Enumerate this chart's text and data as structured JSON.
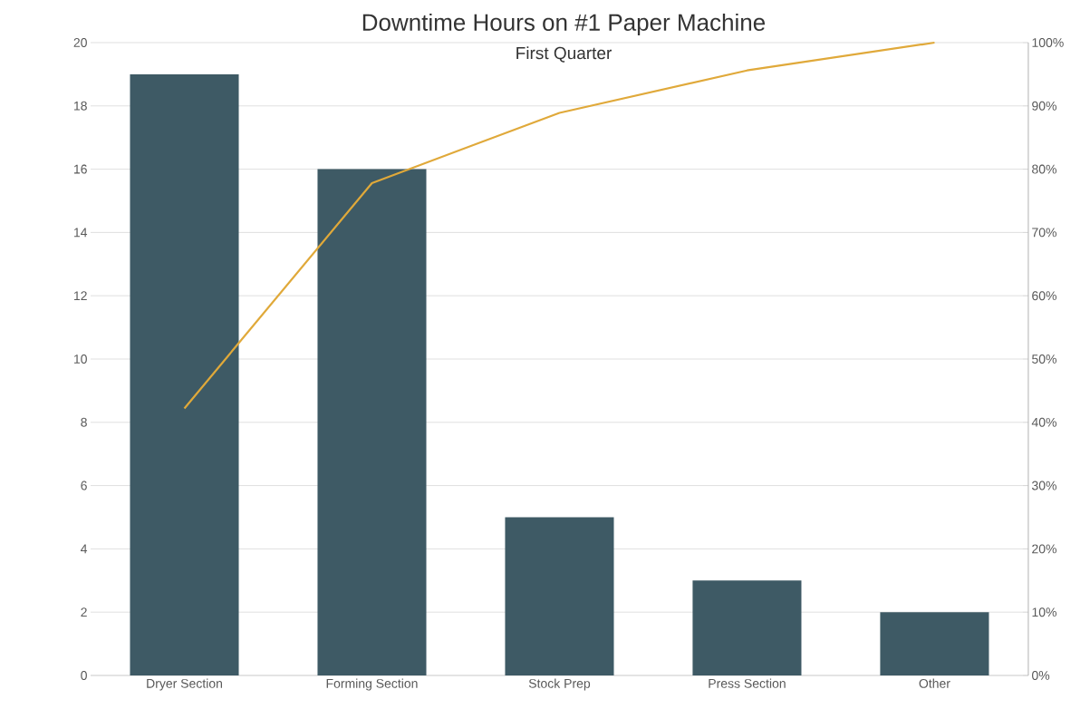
{
  "chart_data": {
    "type": "bar",
    "title": "Downtime Hours on #1 Paper Machine",
    "subtitle": "First Quarter",
    "categories": [
      "Dryer Section",
      "Forming Section",
      "Stock Prep",
      "Press Section",
      "Other"
    ],
    "series": [
      {
        "color": "#3e5a65",
        "values": [
          19,
          16,
          5,
          3,
          2
        ]
      },
      {
        "type": "line",
        "axis": "y2",
        "color": "#e0a93a",
        "marker": "none",
        "values": [
          42.2,
          77.8,
          88.9,
          95.6,
          100
        ]
      }
    ],
    "ylim": [
      0,
      20
    ],
    "yticks": [
      0,
      2,
      4,
      6,
      8,
      10,
      12,
      14,
      16,
      18,
      20
    ],
    "y2lim": [
      0,
      100
    ],
    "y2ticks": [
      {
        "value": 0,
        "label": "0%"
      },
      {
        "value": 10,
        "label": "10%"
      },
      {
        "value": 20,
        "label": "20%"
      },
      {
        "value": 30,
        "label": "30%"
      },
      {
        "value": 40,
        "label": "40%"
      },
      {
        "value": 50,
        "label": "50%"
      },
      {
        "value": 60,
        "label": "60%"
      },
      {
        "value": 70,
        "label": "70%"
      },
      {
        "value": 80,
        "label": "80%"
      },
      {
        "value": 90,
        "label": "90%"
      },
      {
        "value": 100,
        "label": "100%"
      }
    ],
    "grid": "y"
  }
}
